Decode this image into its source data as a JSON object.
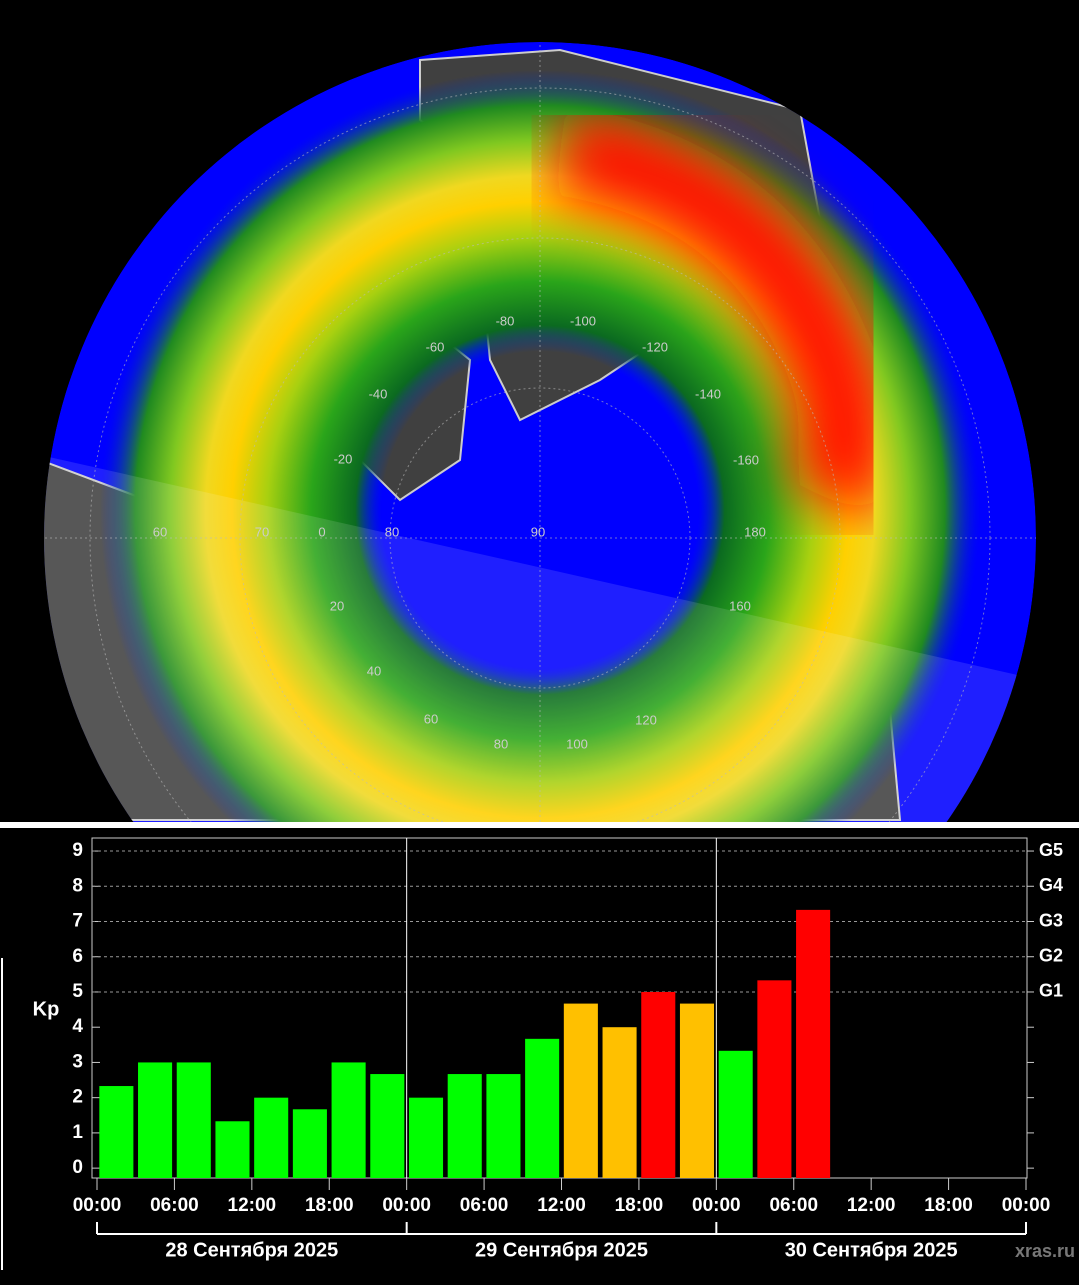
{
  "map": {
    "grid_labels": [
      "-80",
      "-100",
      "-120",
      "-60",
      "-40",
      "-140",
      "-20",
      "-160",
      "60",
      "70",
      "0",
      "80",
      "90",
      "180",
      "160",
      "20",
      "40",
      "120",
      "60",
      "80",
      "100"
    ]
  },
  "chart_data": {
    "type": "bar",
    "y_label": "Kp",
    "x": [
      1.5,
      4.5,
      7.5,
      10.5,
      13.5,
      16.5,
      19.5,
      22.5,
      25.5,
      28.5,
      31.5,
      34.5,
      37.5,
      40.5,
      43.5,
      46.5,
      49.5,
      52.5,
      55.5
    ],
    "values": [
      2.33,
      3,
      3,
      1.33,
      2,
      1.67,
      3,
      2.67,
      2,
      2.67,
      2.67,
      3.67,
      4.67,
      4,
      5,
      4.67,
      3.33,
      5.33,
      7.33
    ],
    "colors": [
      "#00ff00",
      "#00ff00",
      "#00ff00",
      "#00ff00",
      "#00ff00",
      "#00ff00",
      "#00ff00",
      "#00ff00",
      "#00ff00",
      "#00ff00",
      "#00ff00",
      "#00ff00",
      "#ffc000",
      "#ffc000",
      "#ff0000",
      "#ffc000",
      "#00ff00",
      "#ff0000",
      "#ff0000"
    ],
    "xlim": [
      0,
      72
    ],
    "xticks": [
      {
        "value": 0,
        "label": "00:00"
      },
      {
        "value": 6,
        "label": "06:00"
      },
      {
        "value": 12,
        "label": "12:00"
      },
      {
        "value": 18,
        "label": "18:00"
      },
      {
        "value": 24,
        "label": "00:00"
      },
      {
        "value": 30,
        "label": "06:00"
      },
      {
        "value": 36,
        "label": "12:00"
      },
      {
        "value": 42,
        "label": "18:00"
      },
      {
        "value": 48,
        "label": "00:00"
      },
      {
        "value": 54,
        "label": "06:00"
      },
      {
        "value": 60,
        "label": "12:00"
      },
      {
        "value": 66,
        "label": "18:00"
      },
      {
        "value": 72,
        "label": "00:00"
      }
    ],
    "days": [
      "28 Сентября 2025",
      "29 Сентября 2025",
      "30 Сентября 2025"
    ],
    "ylim": [
      -0.28,
      9.37
    ],
    "yticks": [
      0,
      1,
      2,
      3,
      4,
      5,
      6,
      7,
      8,
      9
    ],
    "y2lim": [
      -0.28,
      9.37
    ],
    "y2ticks": [
      {
        "value": 5,
        "label": "G1"
      },
      {
        "value": 6,
        "label": "G2"
      },
      {
        "value": 7,
        "label": "G3"
      },
      {
        "value": 8,
        "label": "G4"
      },
      {
        "value": 9,
        "label": "G5"
      }
    ],
    "grid": true,
    "watermark": "xras.ru"
  }
}
